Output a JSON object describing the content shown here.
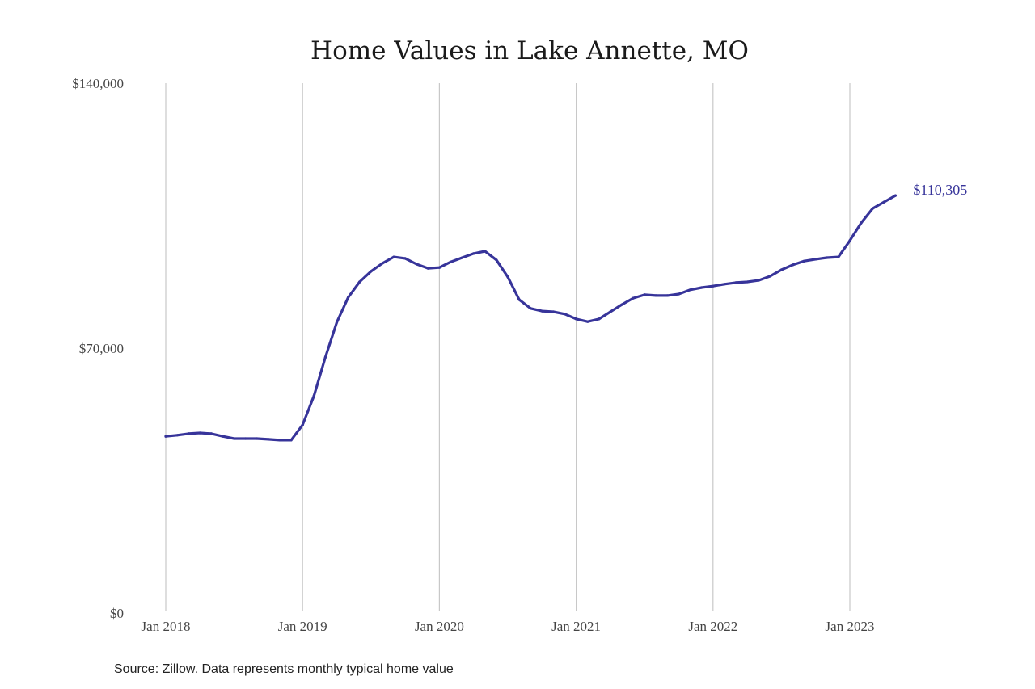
{
  "chart_data": {
    "type": "line",
    "title": "Home Values in Lake Annette, MO",
    "xlabel": "",
    "ylabel": "",
    "ylim": [
      0,
      140000
    ],
    "y_ticks": [
      {
        "value": 0,
        "label": "$0"
      },
      {
        "value": 70000,
        "label": "$70,000"
      },
      {
        "value": 140000,
        "label": "$140,000"
      }
    ],
    "x_ticks": [
      {
        "index": 0,
        "label": "Jan 2018"
      },
      {
        "index": 12,
        "label": "Jan 2019"
      },
      {
        "index": 24,
        "label": "Jan 2020"
      },
      {
        "index": 36,
        "label": "Jan 2021"
      },
      {
        "index": 48,
        "label": "Jan 2022"
      },
      {
        "index": 60,
        "label": "Jan 2023"
      }
    ],
    "x_range_months": [
      0,
      68
    ],
    "grid": "vertical",
    "legend": "none",
    "series": [
      {
        "name": "Typical home value",
        "color": "#37349a",
        "start": "Jan 2018",
        "frequency": "monthly",
        "values": [
          46700,
          47000,
          47400,
          47600,
          47400,
          46700,
          46100,
          46100,
          46100,
          45900,
          45700,
          45700,
          49700,
          57400,
          67600,
          76800,
          83400,
          87500,
          90300,
          92400,
          94100,
          93700,
          92200,
          91100,
          91300,
          92800,
          93900,
          95000,
          95600,
          93300,
          88800,
          82800,
          80500,
          79800,
          79600,
          79000,
          77700,
          77000,
          77700,
          79600,
          81500,
          83200,
          84100,
          83900,
          83900,
          84300,
          85400,
          86000,
          86400,
          86900,
          87300,
          87500,
          87900,
          89000,
          90700,
          92000,
          93000,
          93500,
          93900,
          94100,
          98400,
          103100,
          106900,
          108600,
          110305
        ]
      }
    ],
    "annotations": [
      {
        "label": "$110,305",
        "at_index": 64,
        "value": 110305
      }
    ],
    "source": "Source: Zillow. Data represents monthly typical home value"
  }
}
